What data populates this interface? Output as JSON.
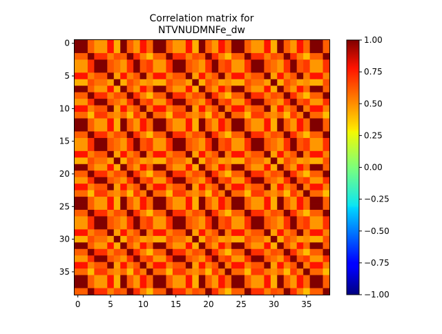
{
  "chart_data": {
    "type": "heatmap",
    "title_lines": [
      "Correlation matrix for",
      "NTVNUDMNFe_dw"
    ],
    "xlabel": "",
    "ylabel": "",
    "n": 39,
    "x_ticks": [
      0,
      5,
      10,
      15,
      20,
      25,
      30,
      35
    ],
    "y_ticks": [
      0,
      5,
      10,
      15,
      20,
      25,
      30,
      35
    ],
    "x_tick_labels": [
      "0",
      "5",
      "10",
      "15",
      "20",
      "25",
      "30",
      "35"
    ],
    "y_tick_labels": [
      "0",
      "5",
      "10",
      "15",
      "20",
      "25",
      "30",
      "35"
    ],
    "colormap": "jet",
    "vmin": -1.0,
    "vmax": 1.0,
    "colorbar_ticks": [
      1.0,
      0.75,
      0.5,
      0.25,
      0.0,
      -0.25,
      -0.5,
      -0.75,
      -1.0
    ],
    "colorbar_tick_labels": [
      "1.00",
      "0.75",
      "0.50",
      "0.25",
      "0.00",
      "−0.25",
      "−0.50",
      "−0.75",
      "−1.00"
    ],
    "group_pattern": [
      0,
      0,
      1,
      2,
      2,
      3,
      4,
      0,
      1,
      2,
      3,
      5,
      0,
      0,
      1,
      2,
      2,
      3,
      4,
      0,
      1,
      2,
      3,
      5,
      0,
      0,
      1,
      2,
      2,
      3,
      4,
      0,
      1,
      2,
      3,
      5,
      0,
      0,
      1
    ],
    "group_matrix": [
      [
        1.0,
        0.62,
        0.5,
        0.78,
        0.45,
        0.6
      ],
      [
        0.62,
        1.0,
        0.72,
        0.55,
        0.66,
        0.42
      ],
      [
        0.5,
        0.72,
        1.0,
        0.64,
        0.58,
        0.7
      ],
      [
        0.78,
        0.55,
        0.64,
        1.0,
        0.48,
        0.56
      ],
      [
        0.45,
        0.66,
        0.58,
        0.48,
        1.0,
        0.52
      ],
      [
        0.6,
        0.42,
        0.7,
        0.56,
        0.52,
        1.0
      ]
    ]
  }
}
